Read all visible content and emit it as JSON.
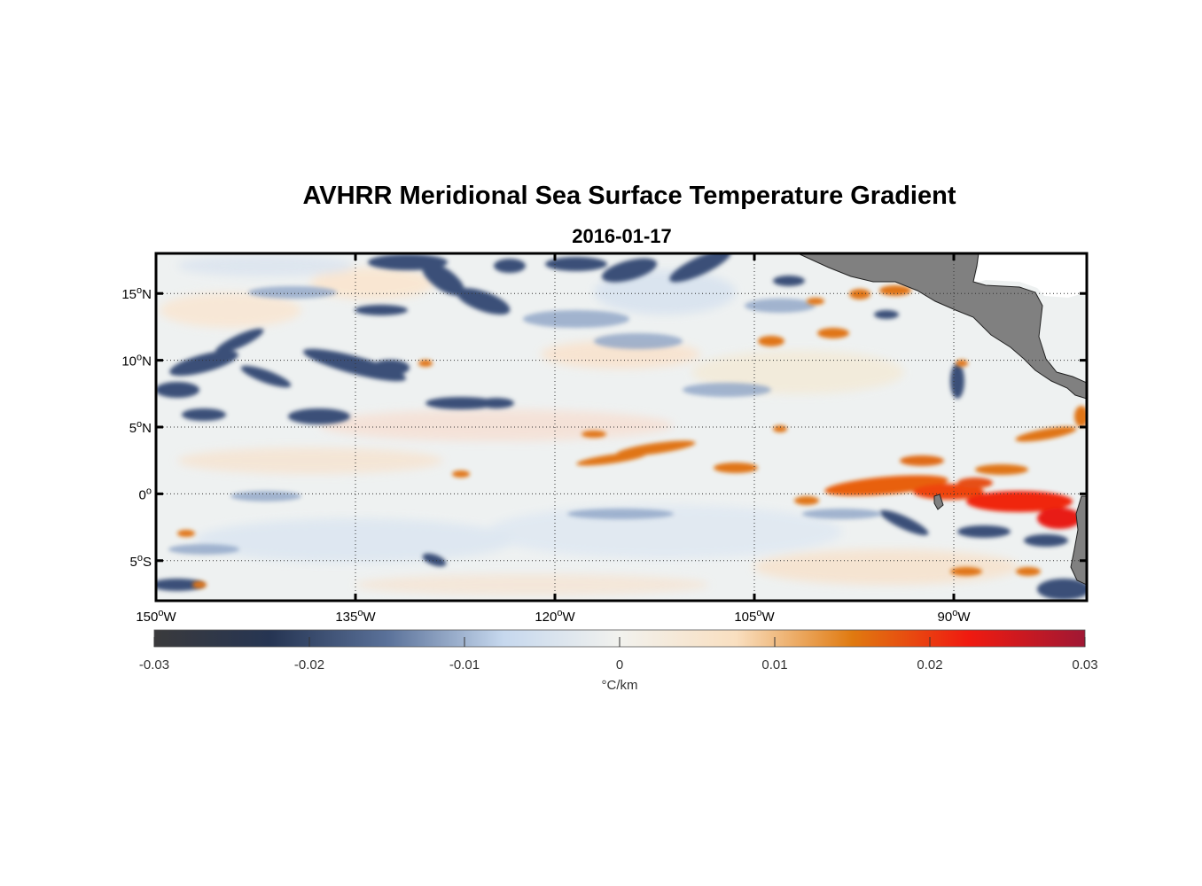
{
  "title": "AVHRR Meridional Sea Surface Temperature Gradient",
  "subtitle": "2016-01-17",
  "map": {
    "lon_range": [
      -150,
      -80
    ],
    "lat_range": [
      -8,
      18
    ],
    "lat_ticks": [
      {
        "value": 15,
        "num": "15",
        "sup": "o",
        "hemi": "N"
      },
      {
        "value": 10,
        "num": "10",
        "sup": "o",
        "hemi": "N"
      },
      {
        "value": 5,
        "num": "5",
        "sup": "o",
        "hemi": "N"
      },
      {
        "value": 0,
        "num": "0",
        "sup": "o",
        "hemi": ""
      },
      {
        "value": -5,
        "num": "5",
        "sup": "o",
        "hemi": "S"
      }
    ],
    "lon_ticks": [
      {
        "value": -150,
        "num": "150",
        "sup": "o",
        "hemi": "W"
      },
      {
        "value": -135,
        "num": "135",
        "sup": "o",
        "hemi": "W"
      },
      {
        "value": -120,
        "num": "120",
        "sup": "o",
        "hemi": "W"
      },
      {
        "value": -105,
        "num": "105",
        "sup": "o",
        "hemi": "W"
      },
      {
        "value": -90,
        "num": "90",
        "sup": "o",
        "hemi": "W"
      }
    ],
    "grid": true,
    "land_color": "#808080"
  },
  "colorbar": {
    "range": [
      -0.03,
      0.03
    ],
    "ticks": [
      "-0.03",
      "-0.02",
      "-0.01",
      "0",
      "0.01",
      "0.02",
      "0.03"
    ],
    "label": "°C/km",
    "colors": [
      "#3a3a3c",
      "#263553",
      "#5a7199",
      "#c6d8ee",
      "#f2f2ee",
      "#f9dfc0",
      "#e07a10",
      "#f01a10",
      "#a01834"
    ]
  }
}
